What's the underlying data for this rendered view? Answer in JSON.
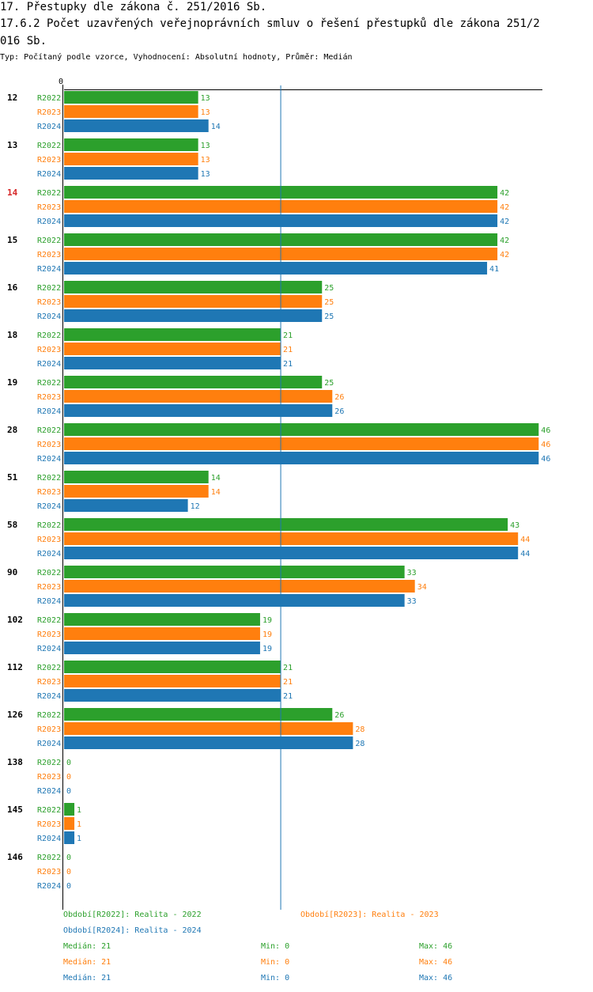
{
  "header": {
    "title_line1": "17. Přestupky dle zákona č. 251/2016 Sb.",
    "title_line2": "17.6.2 Počet uzavřených veřejnoprávních smluv o řešení přestupků dle zákona 251/2",
    "title_line3": "016 Sb.",
    "subtitle": "Typ: Počítaný podle vzorce, Vyhodnocení: Absolutní hodnoty, Průměr: Medián"
  },
  "colors": {
    "R2022": "#2ca02c",
    "R2023": "#ff7f0e",
    "R2024": "#1f77b4",
    "highlight": "#d62728",
    "median_line": "#1f77b4"
  },
  "chart_data": {
    "type": "bar",
    "orientation": "horizontal",
    "x_tick_label": "0",
    "xlim": [
      0,
      46
    ],
    "median_value": 21,
    "highlighted_category": "14",
    "categories": [
      "12",
      "13",
      "14",
      "15",
      "16",
      "18",
      "19",
      "28",
      "51",
      "58",
      "90",
      "102",
      "112",
      "126",
      "138",
      "145",
      "146"
    ],
    "series": [
      {
        "name": "R2022",
        "values": [
          13,
          13,
          42,
          42,
          25,
          21,
          25,
          46,
          14,
          43,
          33,
          19,
          21,
          26,
          0,
          1,
          0
        ]
      },
      {
        "name": "R2023",
        "values": [
          13,
          13,
          42,
          42,
          25,
          21,
          26,
          46,
          14,
          44,
          34,
          19,
          21,
          28,
          0,
          1,
          0
        ]
      },
      {
        "name": "R2024",
        "values": [
          14,
          13,
          42,
          41,
          25,
          21,
          26,
          46,
          12,
          44,
          33,
          19,
          21,
          28,
          0,
          1,
          0
        ]
      }
    ]
  },
  "legend": {
    "r2022": "Období[R2022]: Realita - 2022",
    "r2023": "Období[R2023]: Realita - 2023",
    "r2024": "Období[R2024]: Realita - 2024",
    "stats": [
      {
        "median": "Medián: 21",
        "min": "Min: 0",
        "max": "Max: 46"
      },
      {
        "median": "Medián: 21",
        "min": "Min: 0",
        "max": "Max: 46"
      },
      {
        "median": "Medián: 21",
        "min": "Min: 0",
        "max": "Max: 46"
      }
    ]
  }
}
